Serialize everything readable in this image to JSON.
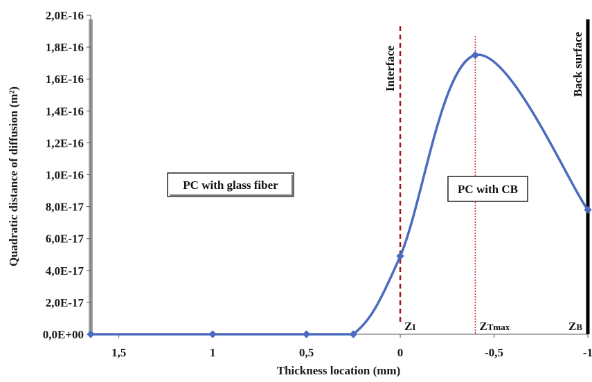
{
  "chart_data": {
    "type": "line",
    "title": "",
    "xlabel": "Thickness location (mm)",
    "ylabel": "Quadratic distance of diffusion (m²)",
    "x_ticks": [
      "1,5",
      "1",
      "0,5",
      "0",
      "-0,5",
      "-1"
    ],
    "x_tick_values": [
      1.5,
      1,
      0.5,
      0,
      -0.5,
      -1
    ],
    "y_ticks": [
      "0,0E+00",
      "2,0E-17",
      "4,0E-17",
      "6,0E-17",
      "8,0E-17",
      "1,0E-16",
      "1,2E-16",
      "1,4E-16",
      "1,6E-16",
      "1,8E-16",
      "2,0E-16"
    ],
    "y_tick_values": [
      0,
      2e-17,
      4e-17,
      6e-17,
      8e-17,
      1e-16,
      1.2e-16,
      1.4e-16,
      1.6e-16,
      1.8e-16,
      2e-16
    ],
    "xlim": [
      1.65,
      -1.0
    ],
    "ylim": [
      0,
      2e-16
    ],
    "x_reversed": true,
    "grid": false,
    "series": [
      {
        "color": "#4a6bbf",
        "x": [
          1.65,
          1.0,
          0.5,
          0.25,
          0.0,
          -0.4,
          -1.0
        ],
        "y": [
          0,
          0,
          0,
          0,
          4.9e-17,
          1.75e-16,
          7.8e-17
        ]
      }
    ],
    "vertical_lines": [
      {
        "x": 0,
        "style": "dashed",
        "color": "#a01818",
        "label": "Interface"
      },
      {
        "x": -0.4,
        "style": "dotted",
        "color": "#d02020",
        "label": ""
      },
      {
        "x": -1,
        "style": "solid",
        "color": "#000000",
        "label": "Back surface"
      }
    ],
    "left_bar_color": "#a8a8a8",
    "region_labels": [
      "PC with glass fiber",
      "PC with CB"
    ],
    "markers": [
      {
        "main": "Z",
        "sub": "I",
        "x": 0
      },
      {
        "main": "Z",
        "sub": "Tmax",
        "x": -0.4
      },
      {
        "main": "Z",
        "sub": "B",
        "x": -1
      }
    ]
  }
}
